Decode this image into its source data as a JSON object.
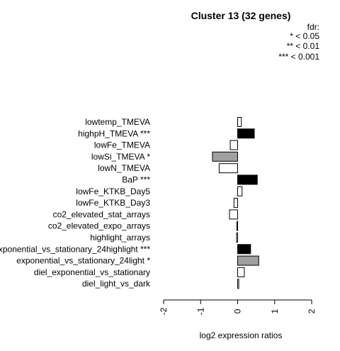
{
  "chart_data": {
    "type": "bar",
    "orientation": "horizontal",
    "title": "Cluster 13 (32 genes)",
    "legend": {
      "title": "fdr:",
      "entries": [
        "* < 0.05",
        "** < 0.01",
        "*** < 0.001"
      ],
      "position": "top-right"
    },
    "xlabel": "log2 expression ratios",
    "xlim": [
      -2,
      2
    ],
    "xticks": [
      "-2",
      "-1",
      "0",
      "1",
      "2"
    ],
    "categories": [
      "lowtemp_TMEVA",
      "highpH_TMEVA ***",
      "lowFe_TMEVA",
      "lowSi_TMEVA *",
      "lowN_TMEVA",
      "BaP ***",
      "lowFe_KTKB_Day5",
      "lowFe_KTKB_Day3",
      "co2_elevated_stat_arrays",
      "co2_elevated_expo_arrays",
      "highlight_arrays",
      "exponential_vs_stationary_24highlight ***",
      "exponential_vs_stationary_24light *",
      "diel_exponential_vs_stationary",
      "diel_light_vs_dark"
    ],
    "values": [
      0.1,
      0.45,
      -0.2,
      -0.68,
      -0.5,
      0.53,
      0.12,
      -0.1,
      -0.22,
      -0.02,
      -0.03,
      0.35,
      0.57,
      0.18,
      0.03
    ],
    "fills": [
      "#ffffff",
      "#000000",
      "#ffffff",
      "#a0a0a0",
      "#ffffff",
      "#000000",
      "#ffffff",
      "#ffffff",
      "#ffffff",
      "#ffffff",
      "#ffffff",
      "#000000",
      "#a0a0a0",
      "#ffffff",
      "#ffffff"
    ],
    "grid": false
  }
}
